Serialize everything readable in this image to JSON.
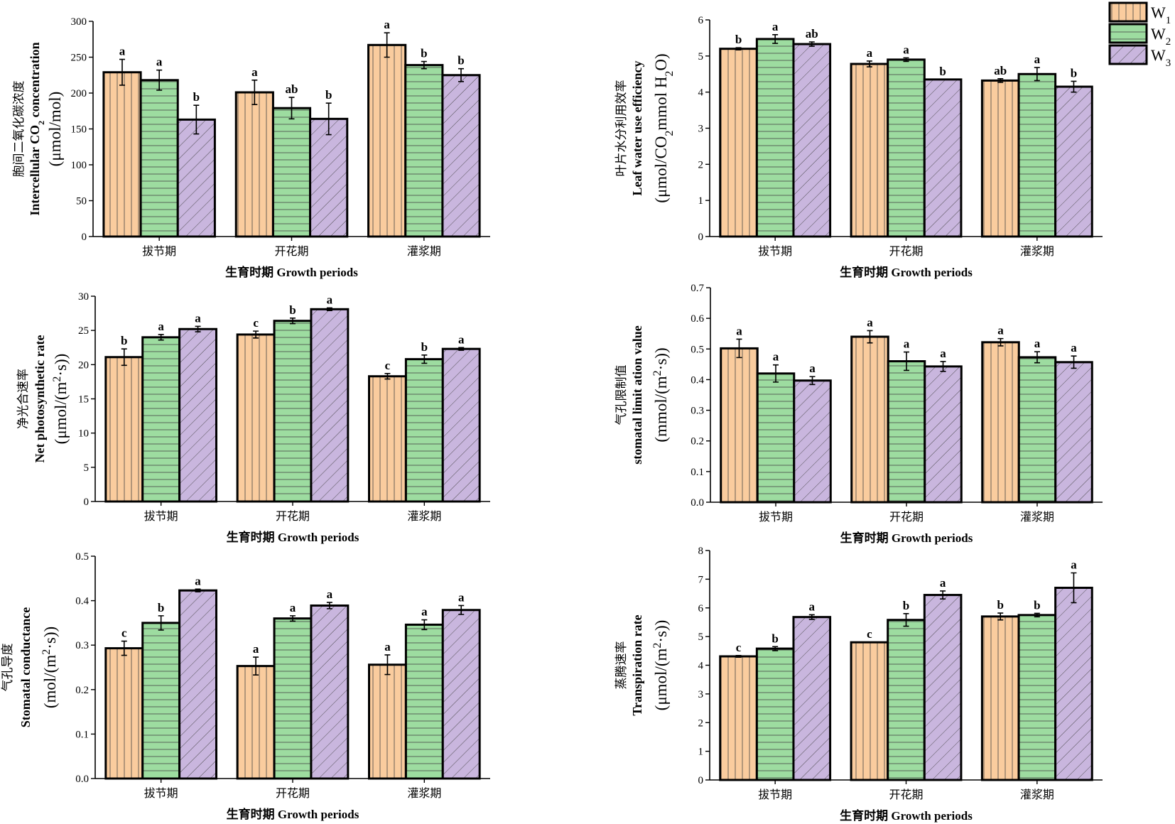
{
  "legend": {
    "items": [
      {
        "label": "W",
        "sub": "1",
        "color": "#FACC9E",
        "pattern": "vertical"
      },
      {
        "label": "W",
        "sub": "2",
        "color": "#9DDCA0",
        "pattern": "horizontal"
      },
      {
        "label": "W",
        "sub": "3",
        "color": "#C9B6DE",
        "pattern": "diagonal"
      }
    ]
  },
  "chart_data": [
    {
      "type": "bar",
      "categories": [
        "拔节期",
        "开花期",
        "灌浆期"
      ],
      "xlabel": "生育时期  Growth  periods",
      "ylabel_lines": [
        "胞间二氧化碳浓度",
        "Intercellular CO₂ concentration",
        "(μmol/mol)"
      ],
      "ylim": [
        0,
        300
      ],
      "yticks": [
        0,
        50,
        100,
        150,
        200,
        250,
        300
      ],
      "series": [
        {
          "name": "W1",
          "values": [
            229,
            201,
            267
          ],
          "errors": [
            18,
            17,
            17
          ],
          "letters": [
            "a",
            "a",
            "a"
          ]
        },
        {
          "name": "W2",
          "values": [
            218,
            179,
            239
          ],
          "errors": [
            14,
            15,
            5
          ],
          "letters": [
            "a",
            "ab",
            "b"
          ]
        },
        {
          "name": "W3",
          "values": [
            163,
            164,
            225
          ],
          "errors": [
            20,
            22,
            9
          ],
          "letters": [
            "b",
            "b",
            "b"
          ]
        }
      ]
    },
    {
      "type": "bar",
      "categories": [
        "拔节期",
        "开花期",
        "灌浆期"
      ],
      "xlabel": "生育时期  Growth  periods",
      "ylabel_lines": [
        "叶片水分利用效率",
        "Leaf water use efficiency",
        "(μmol/CO₂mmol H₂O)"
      ],
      "ylim": [
        0,
        6
      ],
      "yticks": [
        0,
        1,
        2,
        3,
        4,
        5,
        6
      ],
      "series": [
        {
          "name": "W1",
          "values": [
            5.2,
            4.78,
            4.32
          ],
          "errors": [
            0.03,
            0.08,
            0.05
          ],
          "letters": [
            "b",
            "a",
            "ab"
          ]
        },
        {
          "name": "W2",
          "values": [
            5.47,
            4.9,
            4.5
          ],
          "errors": [
            0.12,
            0.05,
            0.18
          ],
          "letters": [
            "a",
            "a",
            "a"
          ]
        },
        {
          "name": "W3",
          "values": [
            5.33,
            4.35,
            4.15
          ],
          "errors": [
            0.06,
            0.0,
            0.15
          ],
          "letters": [
            "ab",
            "b",
            "b"
          ]
        }
      ]
    },
    {
      "type": "bar",
      "categories": [
        "拔节期",
        "开花期",
        "灌浆期"
      ],
      "xlabel": "生育时期  Growth  periods",
      "ylabel_lines": [
        "净光合速率",
        "Net photosynthetic rate",
        "(μmol/(m²·s))"
      ],
      "ylim": [
        0,
        30
      ],
      "yticks": [
        0,
        5,
        10,
        15,
        20,
        25,
        30
      ],
      "series": [
        {
          "name": "W1",
          "values": [
            21.1,
            24.4,
            18.3
          ],
          "errors": [
            1.2,
            0.5,
            0.4
          ],
          "letters": [
            "b",
            "c",
            "c"
          ]
        },
        {
          "name": "W2",
          "values": [
            24.0,
            26.4,
            20.8
          ],
          "errors": [
            0.4,
            0.4,
            0.6
          ],
          "letters": [
            "a",
            "b",
            "b"
          ]
        },
        {
          "name": "W3",
          "values": [
            25.2,
            28.1,
            22.3
          ],
          "errors": [
            0.4,
            0.2,
            0.2
          ],
          "letters": [
            "a",
            "a",
            "a"
          ]
        }
      ]
    },
    {
      "type": "bar",
      "categories": [
        "拔节期",
        "开花期",
        "灌浆期"
      ],
      "xlabel": "生育时期  Growth  periods",
      "ylabel_lines": [
        "气孔限制值",
        "stomatal limit ation value",
        "(mmol/(m²·s))"
      ],
      "ylim": [
        0,
        0.7
      ],
      "yticks": [
        0.0,
        0.1,
        0.2,
        0.3,
        0.4,
        0.5,
        0.6,
        0.7
      ],
      "series": [
        {
          "name": "W1",
          "values": [
            0.502,
            0.54,
            0.522
          ],
          "errors": [
            0.03,
            0.02,
            0.012
          ],
          "letters": [
            "a",
            "a",
            "a"
          ]
        },
        {
          "name": "W2",
          "values": [
            0.42,
            0.46,
            0.473
          ],
          "errors": [
            0.028,
            0.03,
            0.018
          ],
          "letters": [
            "a",
            "a",
            "a"
          ]
        },
        {
          "name": "W3",
          "values": [
            0.397,
            0.443,
            0.457
          ],
          "errors": [
            0.013,
            0.016,
            0.02
          ],
          "letters": [
            "a",
            "a",
            "a"
          ]
        }
      ]
    },
    {
      "type": "bar",
      "categories": [
        "拔节期",
        "开花期",
        "灌浆期"
      ],
      "xlabel": "生育时期  Growth  periods",
      "ylabel_lines": [
        "气孔导度",
        "Stomatal conductance",
        "(mol/(m²·s))"
      ],
      "ylim": [
        0,
        0.5
      ],
      "yticks": [
        0.0,
        0.1,
        0.2,
        0.3,
        0.4,
        0.5
      ],
      "series": [
        {
          "name": "W1",
          "values": [
            0.293,
            0.253,
            0.256
          ],
          "errors": [
            0.016,
            0.02,
            0.022
          ],
          "letters": [
            "c",
            "a",
            "a"
          ]
        },
        {
          "name": "W2",
          "values": [
            0.35,
            0.36,
            0.346
          ],
          "errors": [
            0.016,
            0.006,
            0.011
          ],
          "letters": [
            "b",
            "a",
            "a"
          ]
        },
        {
          "name": "W3",
          "values": [
            0.423,
            0.389,
            0.379
          ],
          "errors": [
            0.003,
            0.007,
            0.01
          ],
          "letters": [
            "a",
            "a",
            "a"
          ]
        }
      ]
    },
    {
      "type": "bar",
      "categories": [
        "拔节期",
        "开花期",
        "灌浆期"
      ],
      "xlabel": "生育时期  Growth  periods",
      "ylabel_lines": [
        "蒸腾速率",
        "Transpiration rate",
        "(μmol/(m²·s))"
      ],
      "ylim": [
        0,
        8
      ],
      "yticks": [
        0,
        1,
        2,
        3,
        4,
        5,
        6,
        7,
        8
      ],
      "series": [
        {
          "name": "W1",
          "values": [
            4.31,
            4.8,
            5.7
          ],
          "errors": [
            0.03,
            0.0,
            0.12
          ],
          "letters": [
            "c",
            "c",
            "b"
          ]
        },
        {
          "name": "W2",
          "values": [
            4.58,
            5.58,
            5.75
          ],
          "errors": [
            0.07,
            0.22,
            0.06
          ],
          "letters": [
            "b",
            "b",
            "b"
          ]
        },
        {
          "name": "W3",
          "values": [
            5.68,
            6.45,
            6.7
          ],
          "errors": [
            0.08,
            0.14,
            0.52
          ],
          "letters": [
            "a",
            "a",
            "a"
          ]
        }
      ]
    }
  ]
}
